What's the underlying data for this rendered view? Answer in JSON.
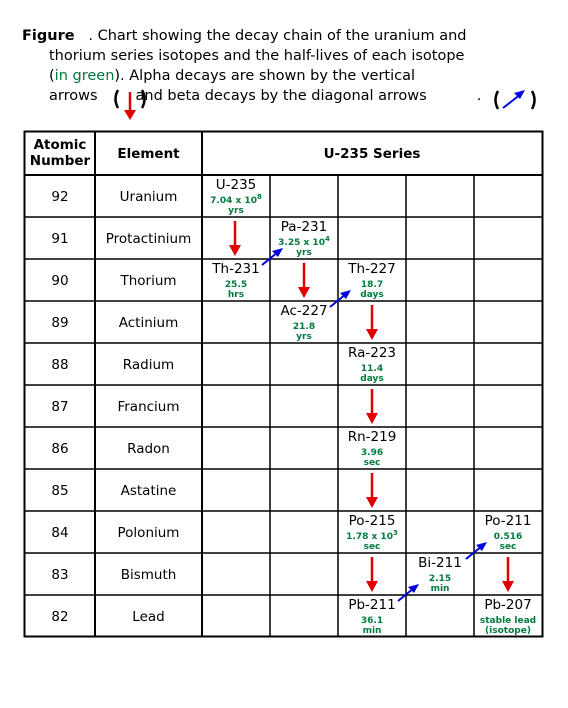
{
  "caption": {
    "label": "Figure",
    "dot": ".",
    "line1": "Chart showing the decay chain of the uranium and",
    "line2": "thorium series isotopes and the half-lives of each isotope",
    "line3_open": "(",
    "line3_green": "in green",
    "line3_close": ").  Alpha decays are shown by the vertical",
    "line4_a": "arrows",
    "line4_b": "and beta decays by the diagonal arrows",
    "line4_c": "."
  },
  "table": {
    "header_atomic": "Atomic",
    "header_number": "Number",
    "header_element": "Element",
    "header_series": "U-235 Series",
    "rows": [
      {
        "z": "92",
        "element": "Uranium"
      },
      {
        "z": "91",
        "element": "Protactinium"
      },
      {
        "z": "90",
        "element": "Thorium"
      },
      {
        "z": "89",
        "element": "Actinium"
      },
      {
        "z": "88",
        "element": "Radium"
      },
      {
        "z": "87",
        "element": "Francium"
      },
      {
        "z": "86",
        "element": "Radon"
      },
      {
        "z": "85",
        "element": "Astatine"
      },
      {
        "z": "84",
        "element": "Polonium"
      },
      {
        "z": "83",
        "element": "Bismuth"
      },
      {
        "z": "82",
        "element": "Lead"
      }
    ]
  },
  "isotopes": [
    {
      "name": "U-235",
      "hl_a": "7.04 x 10",
      "hl_sup": "8",
      "hl_b": "yrs"
    },
    {
      "name": "Pa-231",
      "hl_a": "3.25 x 10",
      "hl_sup": "4",
      "hl_b": "yrs"
    },
    {
      "name": "Th-231",
      "hl_a": "25.5",
      "hl_sup": "",
      "hl_b": "hrs"
    },
    {
      "name": "Th-227",
      "hl_a": "18.7",
      "hl_sup": "",
      "hl_b": "days"
    },
    {
      "name": "Ac-227",
      "hl_a": "21.8",
      "hl_sup": "",
      "hl_b": "yrs"
    },
    {
      "name": "Ra-223",
      "hl_a": "11.4",
      "hl_sup": "",
      "hl_b": "days"
    },
    {
      "name": "Rn-219",
      "hl_a": "3.96",
      "hl_sup": "",
      "hl_b": "sec"
    },
    {
      "name": "Po-215",
      "hl_a": "1.78 x 10",
      "hl_sup": "3",
      "hl_b": "sec"
    },
    {
      "name": "Po-211",
      "hl_a": "0.516",
      "hl_sup": "",
      "hl_b": "sec"
    },
    {
      "name": "Bi-211",
      "hl_a": "2.15",
      "hl_sup": "",
      "hl_b": "min"
    },
    {
      "name": "Pb-211",
      "hl_a": "36.1",
      "hl_sup": "",
      "hl_b": "min"
    },
    {
      "name": "Pb-207",
      "hl_a": "stable lead",
      "hl_sup": "",
      "hl_b": "(isotope)"
    }
  ],
  "colors": {
    "alpha_arrow": "#e00000",
    "beta_arrow": "#0000e0",
    "half_life": "#007a3d"
  },
  "legend_icons": {
    "alpha": "red-down-arrow-icon",
    "beta": "blue-diagonal-arrow-icon"
  }
}
